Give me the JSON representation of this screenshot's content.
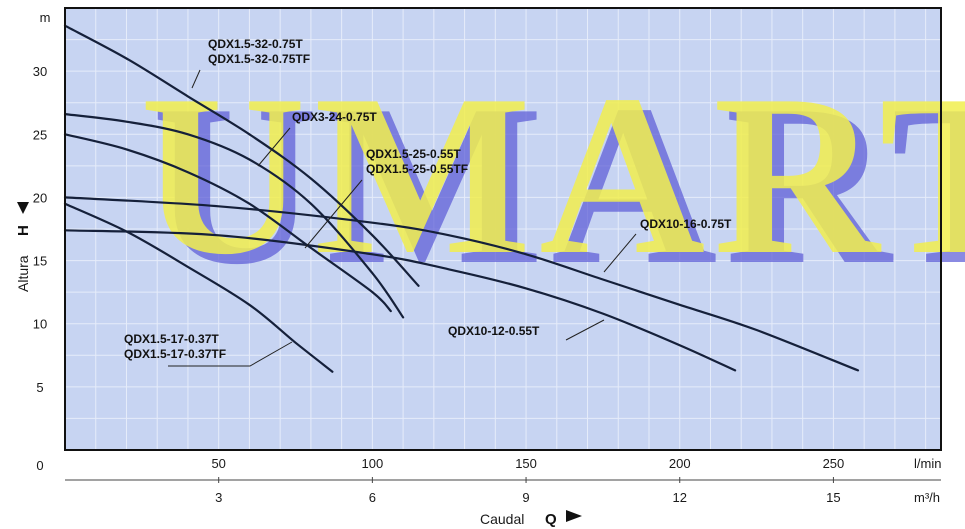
{
  "watermark": "UMART",
  "colors": {
    "plot_bg": "#c7d4f2",
    "grid": "#e6ecfa",
    "curve": "#15203a",
    "watermark_fill": "#f2ef4e",
    "watermark_back": "#5a59d6"
  },
  "chart_data": {
    "type": "line",
    "xlabel": "Caudal",
    "xsymbol": "Q",
    "ylabel": "Altura",
    "ysymbol": "H",
    "x_unit": "l/min",
    "x2_unit": "m³/h",
    "y_unit": "m",
    "xlim": [
      0,
      285
    ],
    "ylim": [
      0,
      35
    ],
    "x_ticks": [
      0,
      50,
      100,
      150,
      200,
      250
    ],
    "x_tick_labels": [
      "0",
      "50",
      "100",
      "150",
      "200",
      "250"
    ],
    "x2_ticks": [
      50,
      100,
      150,
      200,
      250
    ],
    "x2_tick_labels": [
      "3",
      "6",
      "9",
      "12",
      "15"
    ],
    "y_ticks": [
      5,
      10,
      15,
      20,
      25,
      30
    ],
    "y_tick_labels": [
      "5",
      "10",
      "15",
      "20",
      "25",
      "30"
    ],
    "grid": true,
    "series": [
      {
        "name": "QDX1.5-32-0.75T / QDX1.5-32-0.75TF",
        "x": [
          0,
          20,
          40,
          60,
          80,
          100,
          115
        ],
        "y": [
          33.6,
          31.0,
          28.0,
          25.0,
          21.5,
          17.0,
          13.0
        ]
      },
      {
        "name": "QDX3-24-0.75T",
        "x": [
          0,
          20,
          40,
          60,
          80,
          100,
          110
        ],
        "y": [
          26.6,
          26.0,
          25.0,
          23.0,
          19.5,
          14.0,
          10.5
        ]
      },
      {
        "name": "QDX1.5-25-0.55T / QDX1.5-25-0.55TF",
        "x": [
          0,
          20,
          40,
          60,
          80,
          100,
          106
        ],
        "y": [
          25.0,
          23.8,
          22.0,
          19.5,
          16.0,
          12.5,
          11.0
        ]
      },
      {
        "name": "QDX10-16-0.75T",
        "x": [
          0,
          50,
          100,
          125,
          150,
          175,
          200,
          225,
          258
        ],
        "y": [
          20.0,
          19.3,
          18.0,
          17.0,
          15.5,
          13.5,
          11.5,
          9.5,
          6.3
        ]
      },
      {
        "name": "QDX10-12-0.55T",
        "x": [
          0,
          50,
          100,
          125,
          150,
          175,
          200,
          218
        ],
        "y": [
          17.4,
          17.0,
          15.5,
          14.3,
          12.8,
          10.8,
          8.3,
          6.3
        ]
      },
      {
        "name": "QDX1.5-17-0.37T / QDX1.5-17-0.37TF",
        "x": [
          0,
          20,
          40,
          60,
          75,
          87
        ],
        "y": [
          19.5,
          17.3,
          14.5,
          11.5,
          8.5,
          6.2
        ]
      }
    ],
    "annotations": [
      {
        "lines": [
          "QDX1.5-32-0.75T",
          "QDX1.5-32-0.75TF"
        ]
      },
      {
        "lines": [
          "QDX3-24-0.75T"
        ]
      },
      {
        "lines": [
          "QDX1.5-25-0.55T",
          "QDX1.5-25-0.55TF"
        ]
      },
      {
        "lines": [
          "QDX10-16-0.75T"
        ]
      },
      {
        "lines": [
          "QDX10-12-0.55T"
        ]
      },
      {
        "lines": [
          "QDX1.5-17-0.37T",
          "QDX1.5-17-0.37TF"
        ]
      }
    ]
  }
}
